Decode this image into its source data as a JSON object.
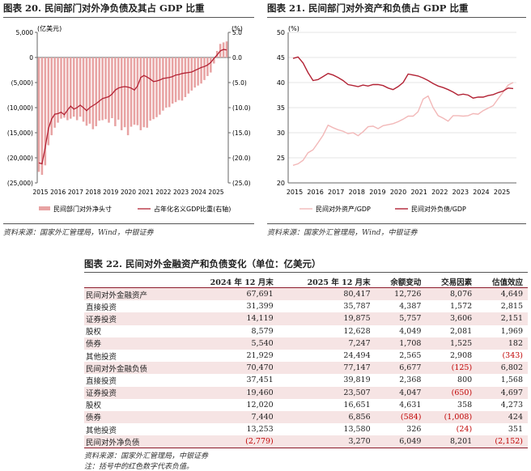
{
  "fig20": {
    "title": "图表 20. 民间部门对外净负债及其占 GDP 比重",
    "unit_label": "(亿美元)",
    "pct_label": "(%)",
    "legend_bar": "民间部门对外净头寸",
    "legend_line": "占年化名义GDP比重(右轴)",
    "source": "资料来源：国家外汇管理局，Wind，中银证券"
  },
  "fig21": {
    "title": "图表 21. 民间部门对外资产和负债占 GDP 比重",
    "pct_label": "(%)",
    "legend_asset": "民间对外资产/GDP",
    "legend_liab": "民间对外负债/GDP",
    "source": "资料来源：国家外汇管理局，Wind，中银证券"
  },
  "table22": {
    "title": "图表 22. 民间对外金融资产和负债变化（单位：亿美元）",
    "headers": [
      "",
      "2024 年 12 月末",
      "2025 年 12 月末",
      "余额变动",
      "交易因素",
      "估值效应"
    ],
    "rows": [
      [
        "民间对外金融资产",
        "67,691",
        "80,417",
        "12,726",
        "8,076",
        "4,649"
      ],
      [
        "直接投资",
        "31,399",
        "35,787",
        "4,387",
        "1,572",
        "2,815"
      ],
      [
        "证券投资",
        "14,119",
        "19,875",
        "5,757",
        "3,606",
        "2,151"
      ],
      [
        "股权",
        "8,579",
        "12,628",
        "4,049",
        "2,081",
        "1,969"
      ],
      [
        "债券",
        "5,540",
        "7,247",
        "1,708",
        "1,525",
        "182"
      ],
      [
        "其他投资",
        "21,929",
        "24,494",
        "2,565",
        "2,908",
        "(343)"
      ],
      [
        "民间对外金融负债",
        "70,470",
        "77,147",
        "6,677",
        "(125)",
        "6,802"
      ],
      [
        "直接投资",
        "37,451",
        "39,819",
        "2,368",
        "800",
        "1,568"
      ],
      [
        "证券投资",
        "19,460",
        "23,507",
        "4,047",
        "(650)",
        "4,697"
      ],
      [
        "股权",
        "12,020",
        "16,651",
        "4,631",
        "358",
        "4,273"
      ],
      [
        "债券",
        "7,440",
        "6,856",
        "(584)",
        "(1,008)",
        "424"
      ],
      [
        "其他投资",
        "13,253",
        "13,580",
        "326",
        "(24)",
        "351"
      ],
      [
        "民间对外净负债",
        "(2,779)",
        "3,270",
        "6,049",
        "8,201",
        "(2,152)"
      ]
    ],
    "source": "资料来源：国家外汇管理局，中银证券",
    "note": "注：括号中的红色数字代表负值。"
  },
  "chart_data": [
    {
      "type": "bar",
      "ylim_left": [
        -25000,
        5000
      ],
      "ylim_right": [
        -25,
        5
      ],
      "left_ticks": [
        "5,000",
        "0",
        "(5,000)",
        "(10,000)",
        "(15,000)",
        "(20,000)",
        "(25,000)"
      ],
      "right_ticks": [
        "5.0",
        "0.0",
        "(5.0)",
        "(10.0)",
        "(15.0)",
        "(20.0)",
        "(25.0)"
      ],
      "x_ticks": [
        "2015",
        "2016",
        "2017",
        "2018",
        "2019",
        "2020",
        "2021",
        "2022",
        "2023",
        "2024",
        "2025"
      ],
      "series": [
        {
          "name": "民间部门对外净头寸",
          "kind": "bar",
          "color": "#e8a3a3",
          "values": [
            -22800,
            -23400,
            -21500,
            -17500,
            -15500,
            -14000,
            -13000,
            -12200,
            -12000,
            -12500,
            -12200,
            -11800,
            -12500,
            -11800,
            -12800,
            -13600,
            -13200,
            -14300,
            -13700,
            -12600,
            -12500,
            -12300,
            -13000,
            -12100,
            -13700,
            -12400,
            -14500,
            -13900,
            -15500,
            -13800,
            -13400,
            -13500,
            -14500,
            -13900,
            -14000,
            -12600,
            -12300,
            -11900,
            -11400,
            -10600,
            -10000,
            -9900,
            -9200,
            -8900,
            -8500,
            -8600,
            -7900,
            -7200,
            -6600,
            -6000,
            -5600,
            -5200,
            -4500,
            -3700,
            -3000,
            -1200,
            1300,
            2700,
            3000,
            3200
          ]
        },
        {
          "name": "占年化名义GDP比重(右轴)",
          "kind": "line",
          "color": "#b22234",
          "values": [
            -21.0,
            -21.2,
            -18.0,
            -14.2,
            -12.3,
            -11.3,
            -11.2,
            -10.9,
            -11.4,
            -10.5,
            -9.7,
            -10.3,
            -10.0,
            -9.5,
            -10.0,
            -10.6,
            -10.0,
            -9.6,
            -9.2,
            -8.7,
            -8.2,
            -8.0,
            -7.8,
            -7.3,
            -6.5,
            -6.1,
            -5.9,
            -5.8,
            -5.9,
            -6.1,
            -6.5,
            -5.7,
            -4.0,
            -3.6,
            -3.9,
            -4.3,
            -4.8,
            -4.7,
            -4.5,
            -4.2,
            -4.1,
            -4.0,
            -3.8,
            -3.5,
            -3.4,
            -3.2,
            -3.1,
            -3.0,
            -2.9,
            -2.6,
            -2.3,
            -2.0,
            -1.8,
            -1.5,
            -1.0,
            -0.2,
            0.5,
            1.3,
            1.6,
            1.5
          ]
        }
      ]
    },
    {
      "type": "line",
      "ylim": [
        20,
        50
      ],
      "y_ticks": [
        "50",
        "45",
        "40",
        "35",
        "30",
        "25",
        "20"
      ],
      "x_ticks": [
        "2015",
        "2016",
        "2017",
        "2018",
        "2019",
        "2020",
        "2021",
        "2022",
        "2023",
        "2024",
        "2025"
      ],
      "series": [
        {
          "name": "民间对外资产/GDP",
          "color": "#f2b8b8",
          "values": [
            23.5,
            23.8,
            24.5,
            26.0,
            26.6,
            28.0,
            29.5,
            31.5,
            31.0,
            30.6,
            30.3,
            29.8,
            30.0,
            29.4,
            30.2,
            31.2,
            31.3,
            30.8,
            31.4,
            31.6,
            31.8,
            32.2,
            32.7,
            33.3,
            33.3,
            34.2,
            36.7,
            37.3,
            35.0,
            33.4,
            32.9,
            32.3,
            33.4,
            33.4,
            33.3,
            33.4,
            33.8,
            33.7,
            34.4,
            34.9,
            35.4,
            36.8,
            38.1,
            39.5,
            40.0
          ]
        },
        {
          "name": "民间对外负债/GDP",
          "color": "#b22234",
          "values": [
            44.8,
            45.1,
            43.9,
            42.0,
            40.4,
            40.6,
            41.2,
            41.8,
            41.5,
            41.0,
            40.4,
            39.6,
            39.4,
            39.2,
            39.5,
            39.3,
            39.6,
            39.6,
            39.4,
            38.9,
            38.6,
            39.2,
            40.0,
            41.7,
            41.5,
            41.3,
            40.9,
            40.4,
            39.8,
            39.3,
            39.0,
            38.6,
            38.1,
            37.5,
            37.7,
            37.5,
            36.9,
            37.1,
            37.1,
            37.4,
            37.6,
            38.0,
            38.3,
            38.9,
            38.8
          ]
        }
      ]
    }
  ]
}
